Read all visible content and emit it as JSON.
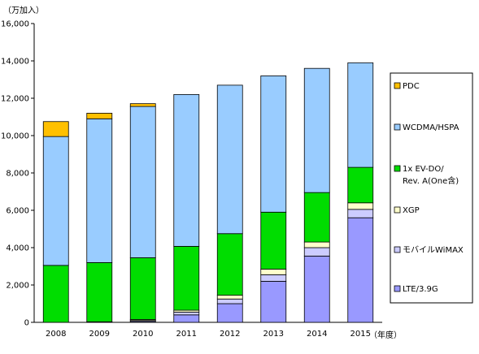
{
  "chart_data": {
    "type": "bar",
    "stacked": true,
    "y_unit_label": "（万加入）",
    "x_unit_label": "（年度）",
    "categories": [
      "2008",
      "2009",
      "2010",
      "2011",
      "2012",
      "2013",
      "2014",
      "2015"
    ],
    "ylim": [
      0,
      16000
    ],
    "yticks": [
      0,
      2000,
      4000,
      6000,
      8000,
      10000,
      12000,
      14000,
      16000
    ],
    "ytick_labels": [
      "0",
      "2,000",
      "4,000",
      "6,000",
      "8,000",
      "10,000",
      "12,000",
      "14,000",
      "16,000"
    ],
    "grid": false,
    "legend_position": "right",
    "series": [
      {
        "name": "LTE/3.9G",
        "color": "#9999ff",
        "values": [
          0,
          20,
          50,
          400,
          1000,
          2200,
          3550,
          5600
        ]
      },
      {
        "name": "モバイルWiMAX",
        "color": "#ccccff",
        "values": [
          0,
          10,
          50,
          150,
          250,
          350,
          450,
          450
        ]
      },
      {
        "name": "XGP",
        "color": "#ffffcc",
        "values": [
          0,
          0,
          50,
          100,
          200,
          300,
          300,
          350
        ]
      },
      {
        "name": "1x EV-DO/Rev. A(One含)",
        "color": "#00dd00",
        "values": [
          3050,
          3170,
          3310,
          3420,
          3300,
          3050,
          2650,
          1900
        ]
      },
      {
        "name": "WCDMA/HSPA",
        "color": "#99ccff",
        "values": [
          6900,
          7700,
          8100,
          8130,
          7950,
          7300,
          6650,
          5600
        ]
      },
      {
        "name": "PDC",
        "color": "#ffc000",
        "values": [
          800,
          300,
          150,
          0,
          0,
          0,
          0,
          0
        ]
      }
    ]
  }
}
